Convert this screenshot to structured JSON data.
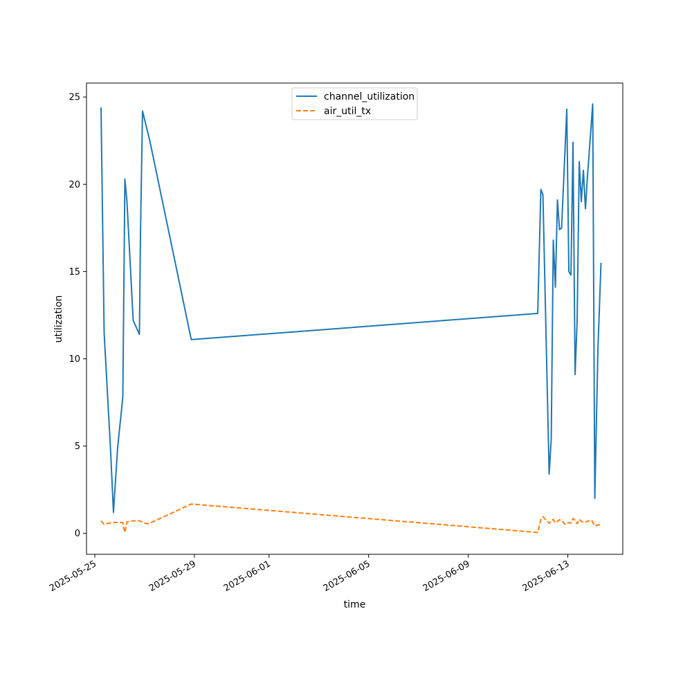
{
  "chart_data": {
    "type": "line",
    "title": "",
    "xlabel": "time",
    "ylabel": "utilization",
    "x_scale": "date",
    "xlim": [
      "2025-05-24 16:00",
      "2025-06-15 05:00"
    ],
    "ylim": [
      -1.2,
      25.8
    ],
    "xticks": [
      "2025-05-25",
      "2025-05-29",
      "2025-06-01",
      "2025-06-05",
      "2025-06-09",
      "2025-06-13"
    ],
    "yticks": [
      0,
      5,
      10,
      15,
      20,
      25
    ],
    "grid": false,
    "legend": {
      "position": "top-center",
      "entries": [
        "channel_utilization",
        "air_util_tx"
      ]
    },
    "series": [
      {
        "name": "channel_utilization",
        "color": "#1f77b4",
        "style": "solid",
        "points": [
          [
            "2025-05-25 06:00",
            24.4
          ],
          [
            "2025-05-25 09:00",
            11.5
          ],
          [
            "2025-05-25 15:00",
            5.0
          ],
          [
            "2025-05-25 18:00",
            1.2
          ],
          [
            "2025-05-25 22:00",
            4.9
          ],
          [
            "2025-05-26 03:00",
            7.8
          ],
          [
            "2025-05-26 04:00",
            14.0
          ],
          [
            "2025-05-26 05:00",
            20.3
          ],
          [
            "2025-05-26 07:00",
            19.0
          ],
          [
            "2025-05-26 13:00",
            12.2
          ],
          [
            "2025-05-26 19:00",
            11.4
          ],
          [
            "2025-05-26 20:00",
            17.0
          ],
          [
            "2025-05-26 22:00",
            24.2
          ],
          [
            "2025-05-27 05:00",
            22.5
          ],
          [
            "2025-05-28 21:00",
            11.1
          ],
          [
            "2025-06-11 19:00",
            12.6
          ],
          [
            "2025-06-11 22:00",
            19.7
          ],
          [
            "2025-06-12 00:00",
            19.4
          ],
          [
            "2025-06-12 06:00",
            3.4
          ],
          [
            "2025-06-12 08:00",
            5.4
          ],
          [
            "2025-06-12 10:00",
            16.8
          ],
          [
            "2025-06-12 12:00",
            14.1
          ],
          [
            "2025-06-12 14:00",
            19.1
          ],
          [
            "2025-06-12 16:00",
            17.4
          ],
          [
            "2025-06-12 18:00",
            17.5
          ],
          [
            "2025-06-12 23:00",
            24.3
          ],
          [
            "2025-06-13 01:00",
            15.0
          ],
          [
            "2025-06-13 03:00",
            14.8
          ],
          [
            "2025-06-13 05:00",
            22.4
          ],
          [
            "2025-06-13 07:00",
            9.1
          ],
          [
            "2025-06-13 09:00",
            12.2
          ],
          [
            "2025-06-13 11:00",
            21.3
          ],
          [
            "2025-06-13 13:00",
            19.0
          ],
          [
            "2025-06-13 15:00",
            20.8
          ],
          [
            "2025-06-13 17:00",
            18.6
          ],
          [
            "2025-06-13 19:00",
            20.5
          ],
          [
            "2025-06-14 00:00",
            24.6
          ],
          [
            "2025-06-14 02:00",
            2.0
          ],
          [
            "2025-06-14 05:00",
            10.5
          ],
          [
            "2025-06-14 08:00",
            15.5
          ]
        ]
      },
      {
        "name": "air_util_tx",
        "color": "#ff7f0e",
        "style": "dashed",
        "points": [
          [
            "2025-05-25 06:00",
            0.72
          ],
          [
            "2025-05-25 09:00",
            0.52
          ],
          [
            "2025-05-25 15:00",
            0.6
          ],
          [
            "2025-05-25 18:00",
            0.62
          ],
          [
            "2025-05-25 22:00",
            0.63
          ],
          [
            "2025-05-26 03:00",
            0.62
          ],
          [
            "2025-05-26 04:00",
            0.3
          ],
          [
            "2025-05-26 05:00",
            0.05
          ],
          [
            "2025-05-26 07:00",
            0.65
          ],
          [
            "2025-05-26 13:00",
            0.72
          ],
          [
            "2025-05-26 19:00",
            0.72
          ],
          [
            "2025-05-26 22:00",
            0.65
          ],
          [
            "2025-05-27 02:00",
            0.55
          ],
          [
            "2025-05-27 05:00",
            0.58
          ],
          [
            "2025-05-28 21:00",
            1.68
          ],
          [
            "2025-06-11 19:00",
            0.05
          ],
          [
            "2025-06-11 22:00",
            0.8
          ],
          [
            "2025-06-12 00:00",
            0.95
          ],
          [
            "2025-06-12 06:00",
            0.58
          ],
          [
            "2025-06-12 10:00",
            0.8
          ],
          [
            "2025-06-12 12:00",
            0.6
          ],
          [
            "2025-06-12 16:00",
            0.78
          ],
          [
            "2025-06-12 18:00",
            0.75
          ],
          [
            "2025-06-12 21:00",
            0.52
          ],
          [
            "2025-06-13 01:00",
            0.62
          ],
          [
            "2025-06-13 03:00",
            0.58
          ],
          [
            "2025-06-13 05:00",
            0.85
          ],
          [
            "2025-06-13 07:00",
            0.75
          ],
          [
            "2025-06-13 09:00",
            0.55
          ],
          [
            "2025-06-13 11:00",
            0.8
          ],
          [
            "2025-06-13 13:00",
            0.7
          ],
          [
            "2025-06-13 15:00",
            0.62
          ],
          [
            "2025-06-13 17:00",
            0.65
          ],
          [
            "2025-06-13 19:00",
            0.7
          ],
          [
            "2025-06-13 23:00",
            0.75
          ],
          [
            "2025-06-14 02:00",
            0.42
          ],
          [
            "2025-06-14 05:00",
            0.48
          ],
          [
            "2025-06-14 08:00",
            0.5
          ]
        ]
      }
    ]
  }
}
